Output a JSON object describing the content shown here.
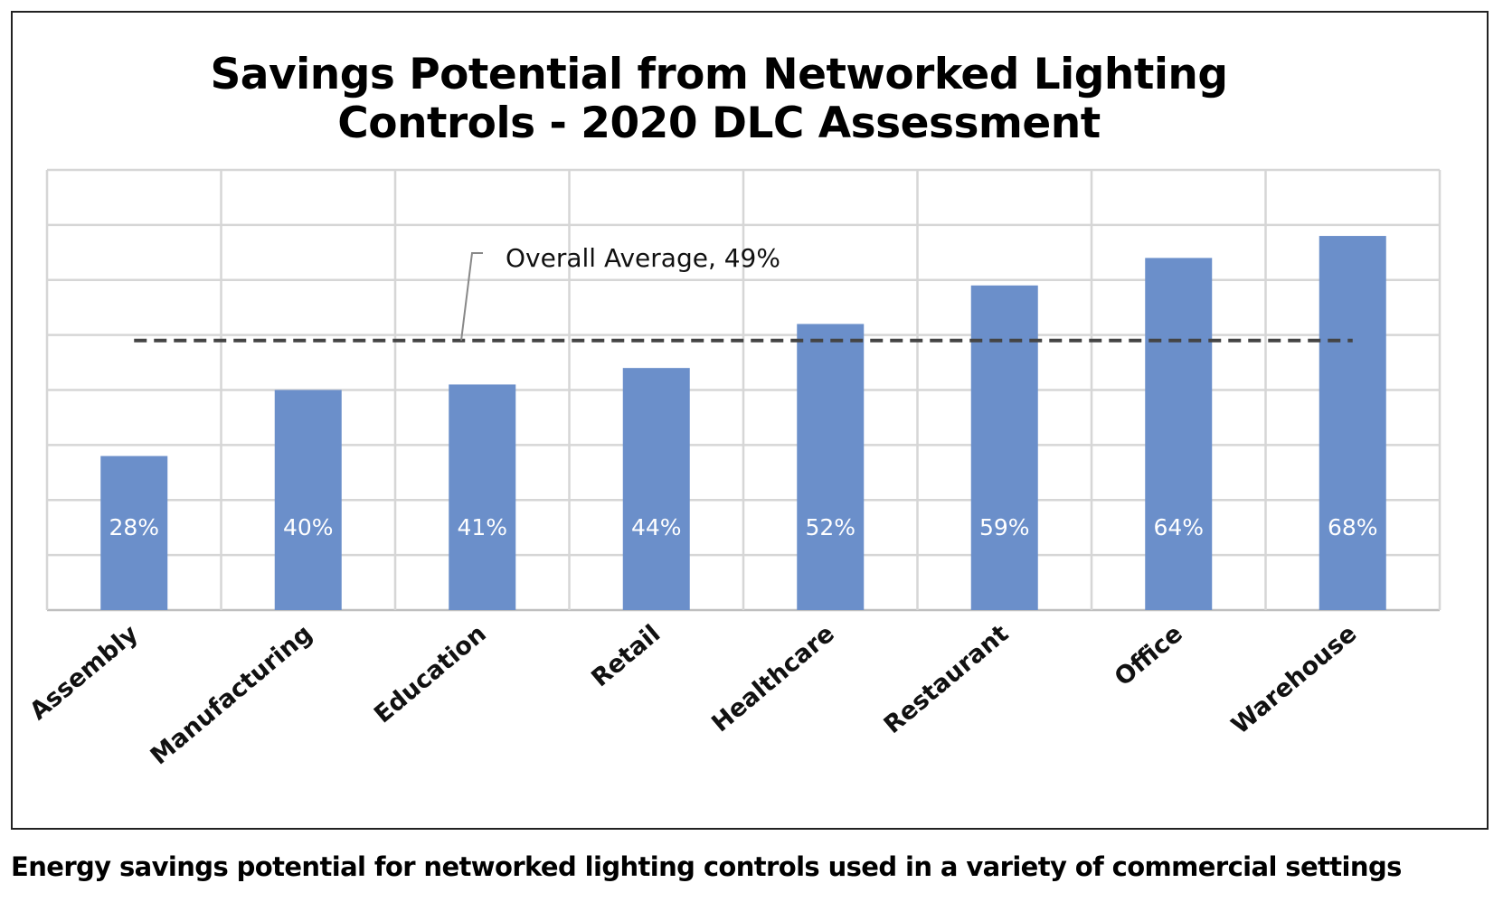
{
  "chart_data": {
    "type": "bar",
    "title_lines": [
      "Savings Potential from Networked Lighting",
      "Controls - 2020 DLC Assessment"
    ],
    "categories": [
      "Assembly",
      "Manufacturing",
      "Education",
      "Retail",
      "Healthcare",
      "Restaurant",
      "Office",
      "Warehouse"
    ],
    "values": [
      28,
      40,
      41,
      44,
      52,
      59,
      64,
      68
    ],
    "data_labels": [
      "28%",
      "40%",
      "41%",
      "44%",
      "52%",
      "59%",
      "64%",
      "68%"
    ],
    "ylim": [
      0,
      80
    ],
    "grid_step": 10,
    "grid": true,
    "xlabel": "",
    "ylabel": "",
    "average": {
      "value": 49,
      "label": "Overall Average, 49%"
    },
    "colors": {
      "bar": "#6b8fca",
      "average_line": "#444444",
      "grid": "#d6d6d6"
    }
  },
  "caption": "Energy savings potential for networked lighting controls used in a variety of commercial settings"
}
